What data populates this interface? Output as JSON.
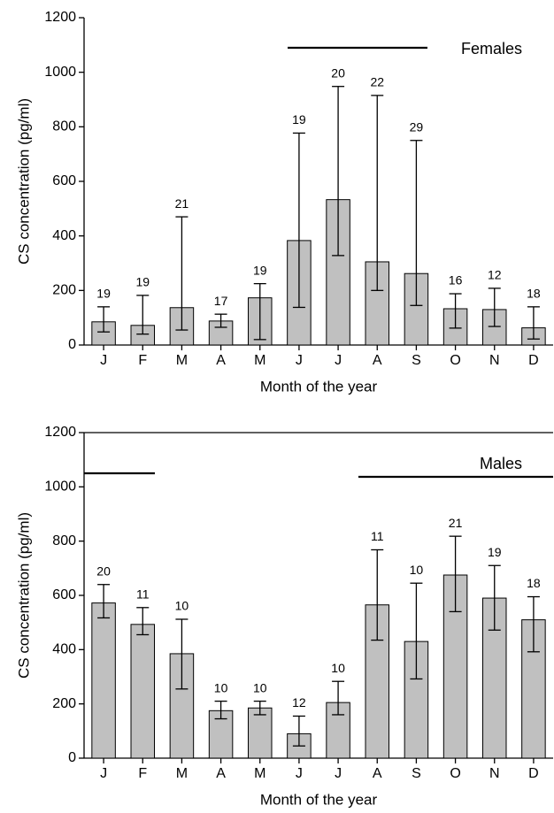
{
  "chart_data": [
    {
      "type": "bar",
      "label": "Females",
      "ylabel": "CS concentration (pg/ml)",
      "xlabel": "Month of the year",
      "categories": [
        "J",
        "F",
        "M",
        "A",
        "M",
        "J",
        "J",
        "A",
        "S",
        "O",
        "N",
        "D"
      ],
      "values": [
        85,
        72,
        137,
        88,
        173,
        383,
        533,
        305,
        262,
        133,
        130,
        63
      ],
      "error_lower": [
        48,
        40,
        55,
        65,
        20,
        138,
        328,
        200,
        145,
        62,
        68,
        22
      ],
      "error_upper": [
        140,
        182,
        470,
        113,
        225,
        777,
        948,
        915,
        750,
        188,
        208,
        140
      ],
      "n": [
        19,
        19,
        21,
        17,
        19,
        19,
        20,
        22,
        29,
        16,
        12,
        18
      ],
      "color": "#c0c0c0",
      "ylim": [
        0,
        1200
      ],
      "yticks": [
        0,
        200,
        400,
        600,
        800,
        1000,
        1200
      ]
    },
    {
      "type": "bar",
      "label": "Males",
      "ylabel": "CS concentration (pg/ml)",
      "xlabel": "Month of the year",
      "categories": [
        "J",
        "F",
        "M",
        "A",
        "M",
        "J",
        "J",
        "A",
        "S",
        "O",
        "N",
        "D"
      ],
      "values": [
        572,
        493,
        385,
        175,
        185,
        90,
        205,
        565,
        430,
        675,
        590,
        510
      ],
      "error_lower": [
        517,
        455,
        255,
        145,
        160,
        45,
        160,
        435,
        292,
        540,
        472,
        392
      ],
      "error_upper": [
        640,
        555,
        512,
        210,
        210,
        155,
        283,
        768,
        645,
        818,
        710,
        595
      ],
      "n": [
        20,
        11,
        10,
        10,
        10,
        12,
        10,
        11,
        10,
        21,
        19,
        18
      ],
      "color": "#c0c0c0",
      "ylim": [
        0,
        1200
      ],
      "yticks": [
        0,
        200,
        400,
        600,
        800,
        1000,
        1200
      ]
    }
  ]
}
